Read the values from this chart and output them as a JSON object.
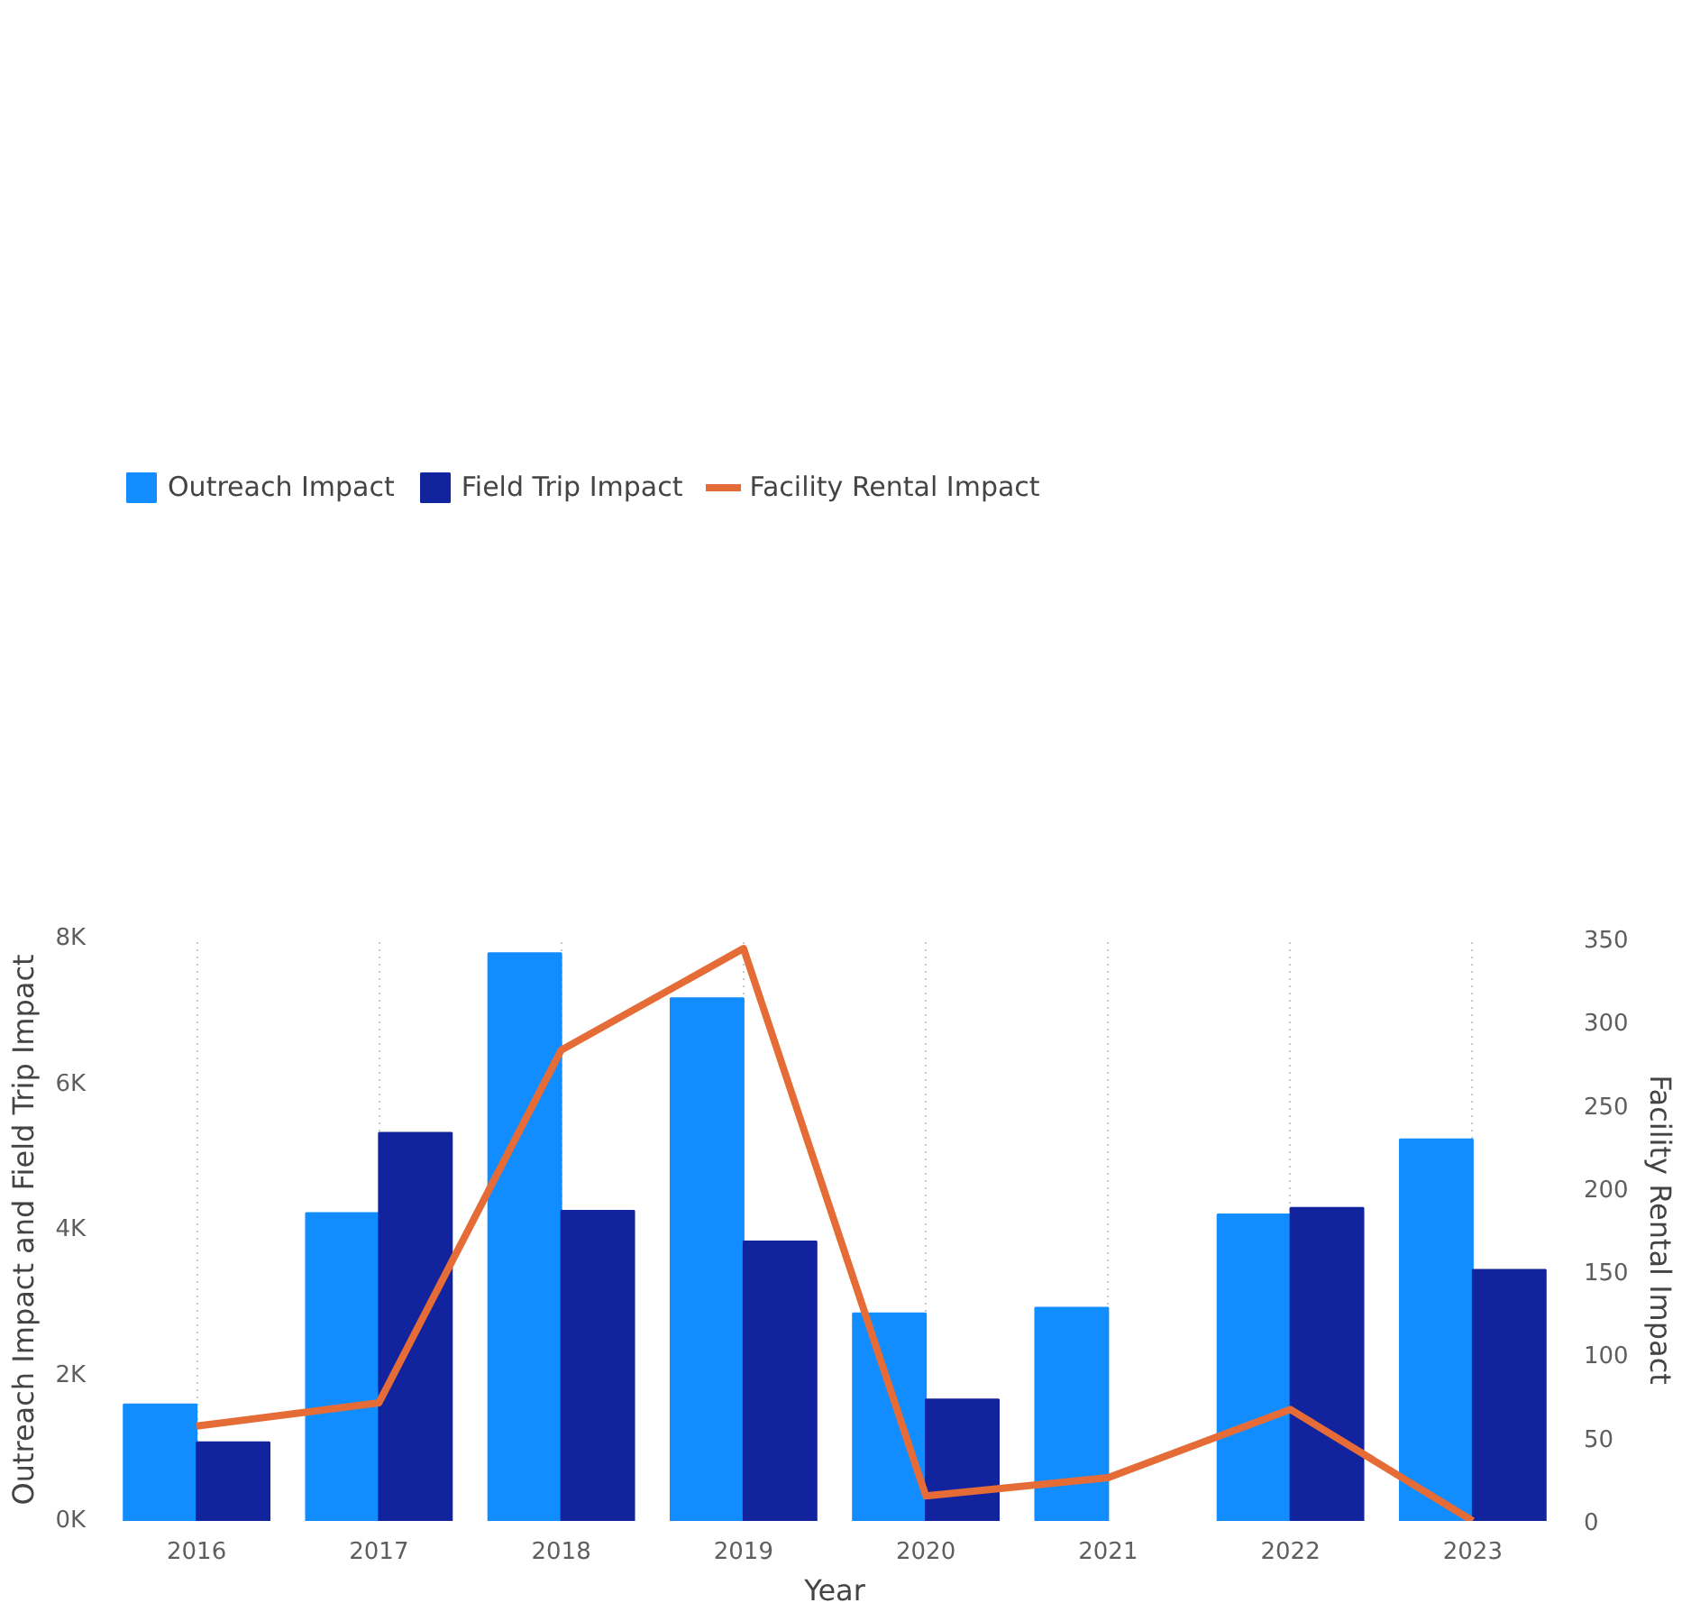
{
  "chart_data": {
    "type": "bar",
    "xlabel": "Year",
    "ylabel": "Outreach Impact and Field Trip Impact",
    "y2label": "Facility Rental Impact",
    "categories": [
      "2016",
      "2017",
      "2018",
      "2019",
      "2020",
      "2021",
      "2022",
      "2023"
    ],
    "series": [
      {
        "name": "Outreach Impact",
        "color": "#118dff",
        "values": [
          1600,
          4230,
          7800,
          7180,
          2850,
          2930,
          4210,
          5240
        ]
      },
      {
        "name": "Field Trip Impact",
        "color": "#12239e",
        "values": [
          1080,
          5330,
          4260,
          3840,
          1670,
          null,
          4300,
          3450
        ]
      },
      {
        "name": "Facility Rental Impact",
        "color": "#e66c37",
        "type": "line",
        "axis": "y2",
        "values": [
          57,
          71,
          283,
          344,
          15,
          26,
          67,
          0
        ]
      }
    ],
    "ylim": [
      0,
      8000
    ],
    "yticks": [
      {
        "value": 0,
        "label": "0K"
      },
      {
        "value": 2000,
        "label": "2K"
      },
      {
        "value": 4000,
        "label": "4K"
      },
      {
        "value": 6000,
        "label": "6K"
      },
      {
        "value": 8000,
        "label": "8K"
      }
    ],
    "y2lim": [
      0,
      350
    ],
    "y2ticks": [
      0,
      50,
      100,
      150,
      200,
      250,
      300,
      350
    ],
    "grid": "x",
    "legend": "top left"
  }
}
